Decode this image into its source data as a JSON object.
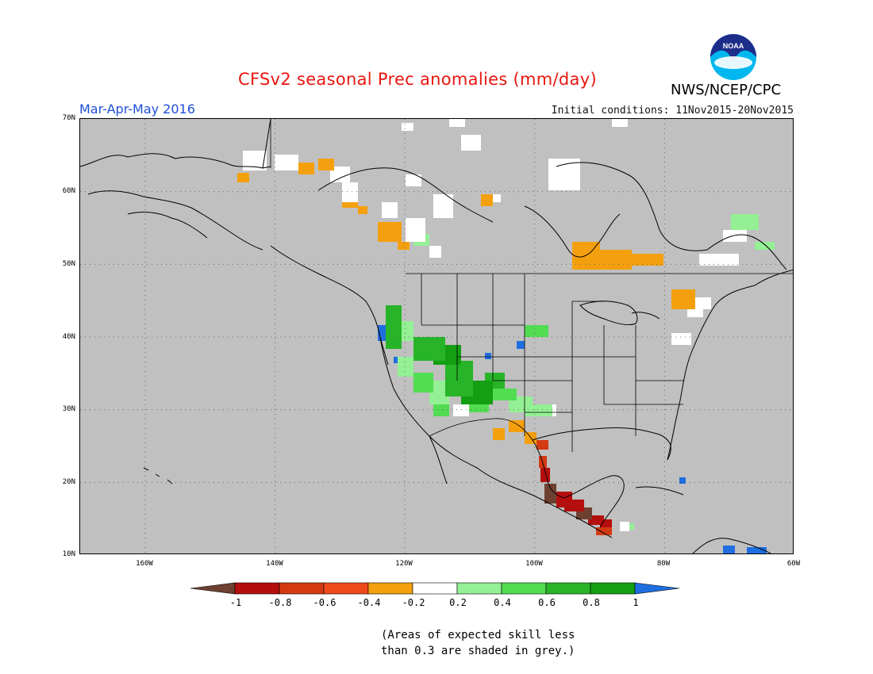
{
  "header": {
    "title": "CFSv2 seasonal Prec anomalies (mm/day)",
    "agency": "NWS/NCEP/CPC",
    "season": "Mar-Apr-May 2016",
    "initial_conditions": "Initial conditions: 11Nov2015-20Nov2015",
    "logo_text": "NOAA"
  },
  "map": {
    "lon_range": [
      -170,
      -60
    ],
    "lat_range": [
      10,
      70
    ],
    "background_color": "#c0c0c0",
    "lat_labels": [
      "70N",
      "60N",
      "50N",
      "40N",
      "30N",
      "20N",
      "10N"
    ],
    "lon_labels": [
      "160W",
      "140W",
      "120W",
      "100W",
      "80W",
      "60W"
    ]
  },
  "colorbar": {
    "labels": [
      "-1",
      "-0.8",
      "-0.6",
      "-0.4",
      "-0.2",
      "0.2",
      "0.4",
      "0.6",
      "0.8",
      "1"
    ],
    "colors": [
      "#6e4030",
      "#b50e0e",
      "#d43a12",
      "#f04a1a",
      "#f4a00e",
      "#ffffff",
      "#94f094",
      "#52dc52",
      "#28b428",
      "#139e13",
      "#1f6ee0"
    ]
  },
  "footnote": {
    "line1": "(Areas of expected skill less",
    "line2": "than 0.3 are shaded in grey.)"
  }
}
